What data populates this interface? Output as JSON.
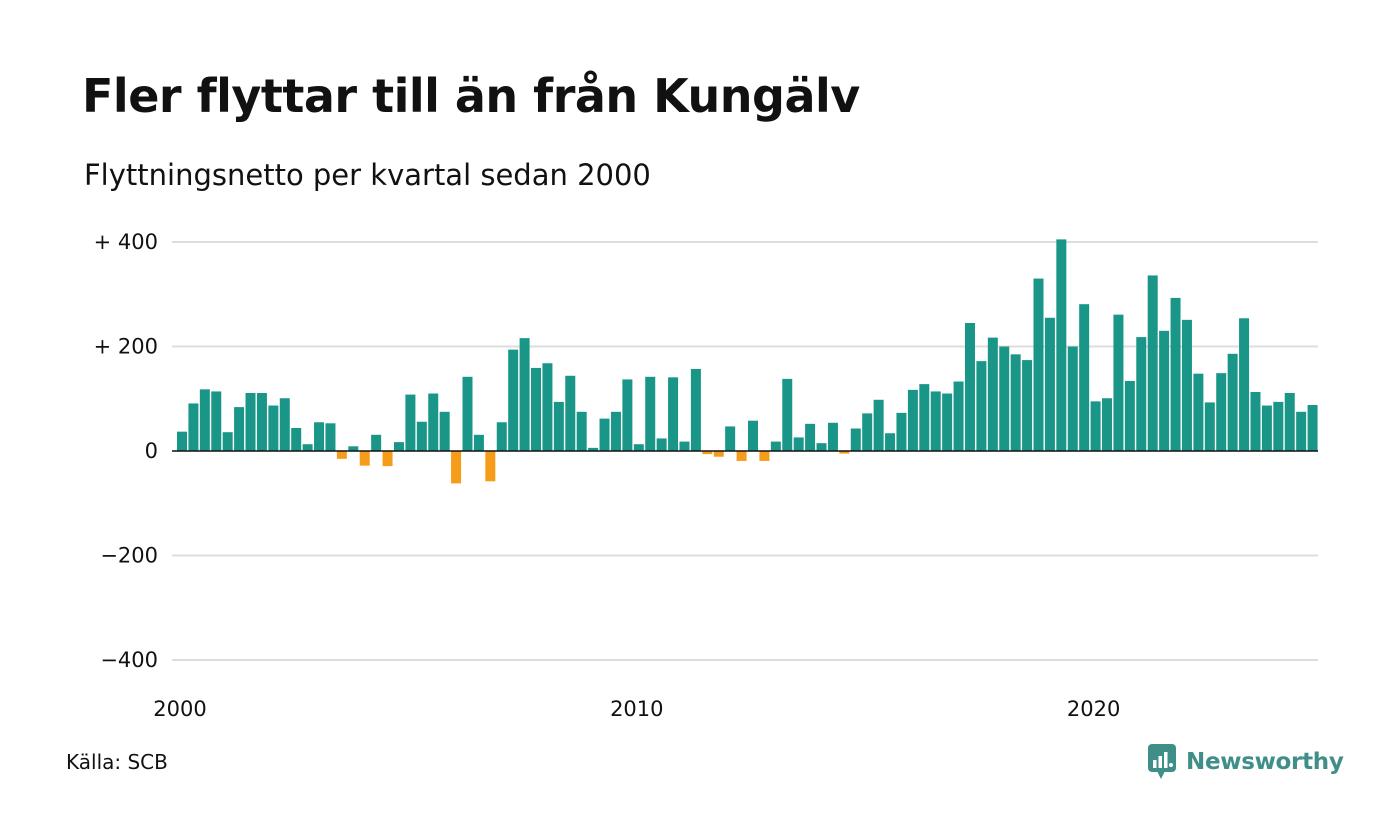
{
  "header": {
    "title": "Fler flyttar till än från Kungälv",
    "subtitle": "Flyttningsnetto per kvartal sedan 2000"
  },
  "footer": {
    "source": "Källa: SCB",
    "brand": "Newsworthy"
  },
  "colors": {
    "positive": "#1a9688",
    "negative": "#f59d1b",
    "grid": "#dddddd",
    "zero_line": "#111111",
    "brand": "#3f8f88"
  },
  "icons": {
    "brand": "newsworthy-logo-icon"
  },
  "chart_data": {
    "type": "bar",
    "title": "Fler flyttar till än från Kungälv",
    "subtitle": "Flyttningsnetto per kvartal sedan 2000",
    "x_start": 2000,
    "periods_per_year": 4,
    "x_tick_labels": [
      "2000",
      "2010",
      "2020"
    ],
    "y_ticks": [
      400,
      200,
      0,
      -200,
      -400
    ],
    "y_tick_labels": [
      "+ 400",
      "+ 200",
      "0",
      "−200",
      "−400"
    ],
    "ylim": [
      -400,
      400
    ],
    "grid": true,
    "values": [
      37,
      91,
      118,
      114,
      36,
      84,
      111,
      111,
      87,
      101,
      44,
      13,
      55,
      53,
      -15,
      9,
      -28,
      31,
      -29,
      17,
      108,
      56,
      110,
      75,
      -62,
      142,
      31,
      -58,
      55,
      194,
      216,
      159,
      168,
      94,
      144,
      75,
      6,
      62,
      75,
      137,
      13,
      142,
      24,
      141,
      18,
      157,
      -6,
      -11,
      47,
      -19,
      58,
      -19,
      18,
      138,
      26,
      52,
      15,
      54,
      -5,
      43,
      72,
      98,
      34,
      73,
      117,
      128,
      114,
      110,
      133,
      245,
      172,
      217,
      200,
      185,
      174,
      330,
      255,
      405,
      200,
      281,
      95,
      101,
      261,
      134,
      218,
      336,
      230,
      293,
      251,
      148,
      93,
      149,
      186,
      254,
      113,
      87,
      94,
      111,
      75,
      88
    ]
  }
}
